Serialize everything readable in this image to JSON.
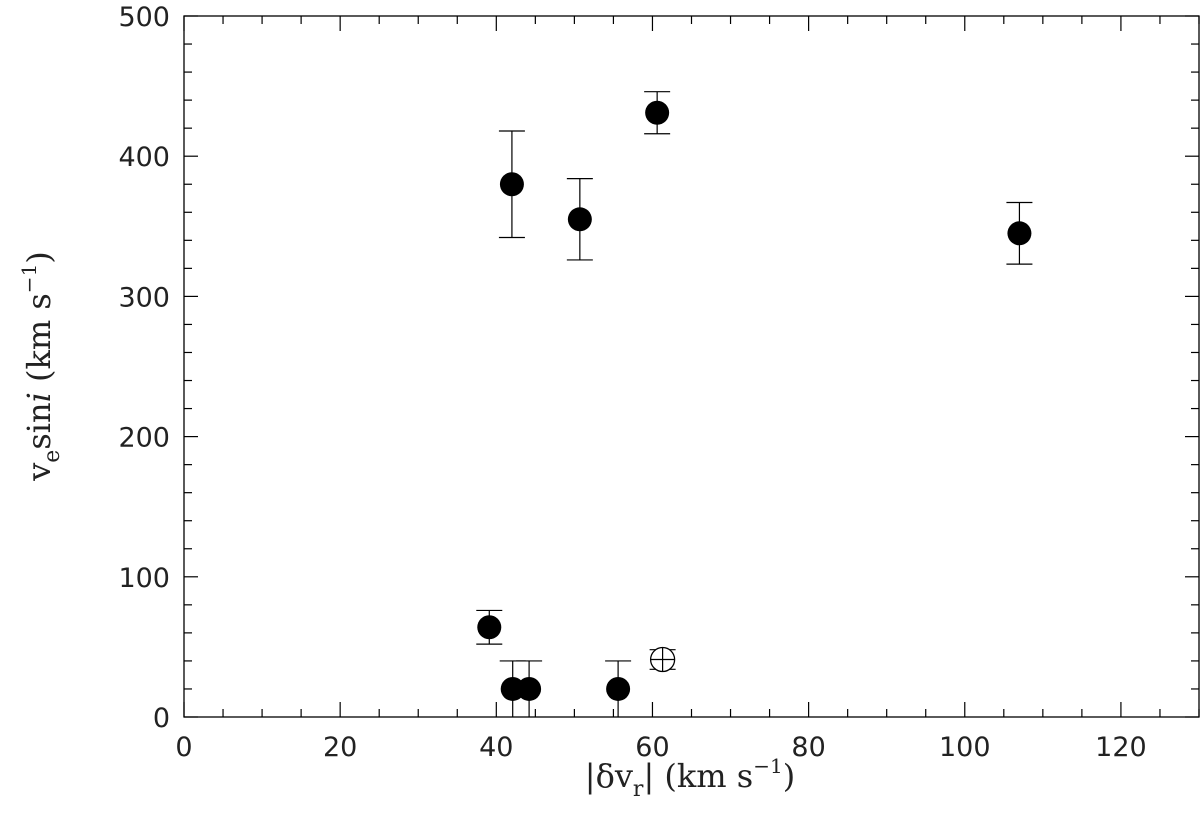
{
  "chart_data": {
    "type": "scatter",
    "xlabel_parts": {
      "pre": "|δv",
      "sub": "r",
      "post": "| (km s",
      "sup": "−1",
      "end": ")"
    },
    "ylabel_parts": {
      "pre": "v",
      "sub": "e",
      "mid": "sin",
      "ital": "i",
      "post": " (km s",
      "sup": "−1",
      "end": ")"
    },
    "xlim": [
      0,
      130
    ],
    "ylim": [
      0,
      500
    ],
    "x_ticks": [
      0,
      20,
      40,
      60,
      80,
      100,
      120
    ],
    "y_ticks": [
      0,
      100,
      200,
      300,
      400,
      500
    ],
    "x_tick_labels": [
      "0",
      "20",
      "40",
      "60",
      "80",
      "100",
      "120"
    ],
    "y_tick_labels": [
      "0",
      "100",
      "200",
      "300",
      "400",
      "500"
    ],
    "x_minor_step": 5,
    "y_minor_step": 20,
    "grid": false,
    "series": [
      {
        "marker": "filled-circle",
        "points": [
          {
            "x": 42.0,
            "y": 380,
            "yerr_low": 342,
            "yerr_high": 418
          },
          {
            "x": 50.7,
            "y": 355,
            "yerr_low": 326,
            "yerr_high": 384
          },
          {
            "x": 60.6,
            "y": 431,
            "yerr_low": 416,
            "yerr_high": 446
          },
          {
            "x": 107.0,
            "y": 345,
            "yerr_low": 323,
            "yerr_high": 367
          },
          {
            "x": 39.1,
            "y": 64,
            "yerr_low": 52,
            "yerr_high": 76
          },
          {
            "x": 42.1,
            "y": 20,
            "yerr_low": 0,
            "yerr_high": 40
          },
          {
            "x": 44.2,
            "y": 20,
            "yerr_low": 0,
            "yerr_high": 40
          },
          {
            "x": 55.6,
            "y": 20,
            "yerr_low": 0,
            "yerr_high": 40
          }
        ]
      },
      {
        "marker": "open-circle-crossed",
        "points": [
          {
            "x": 61.3,
            "y": 41,
            "yerr_low": 34,
            "yerr_high": 48
          }
        ]
      }
    ]
  }
}
